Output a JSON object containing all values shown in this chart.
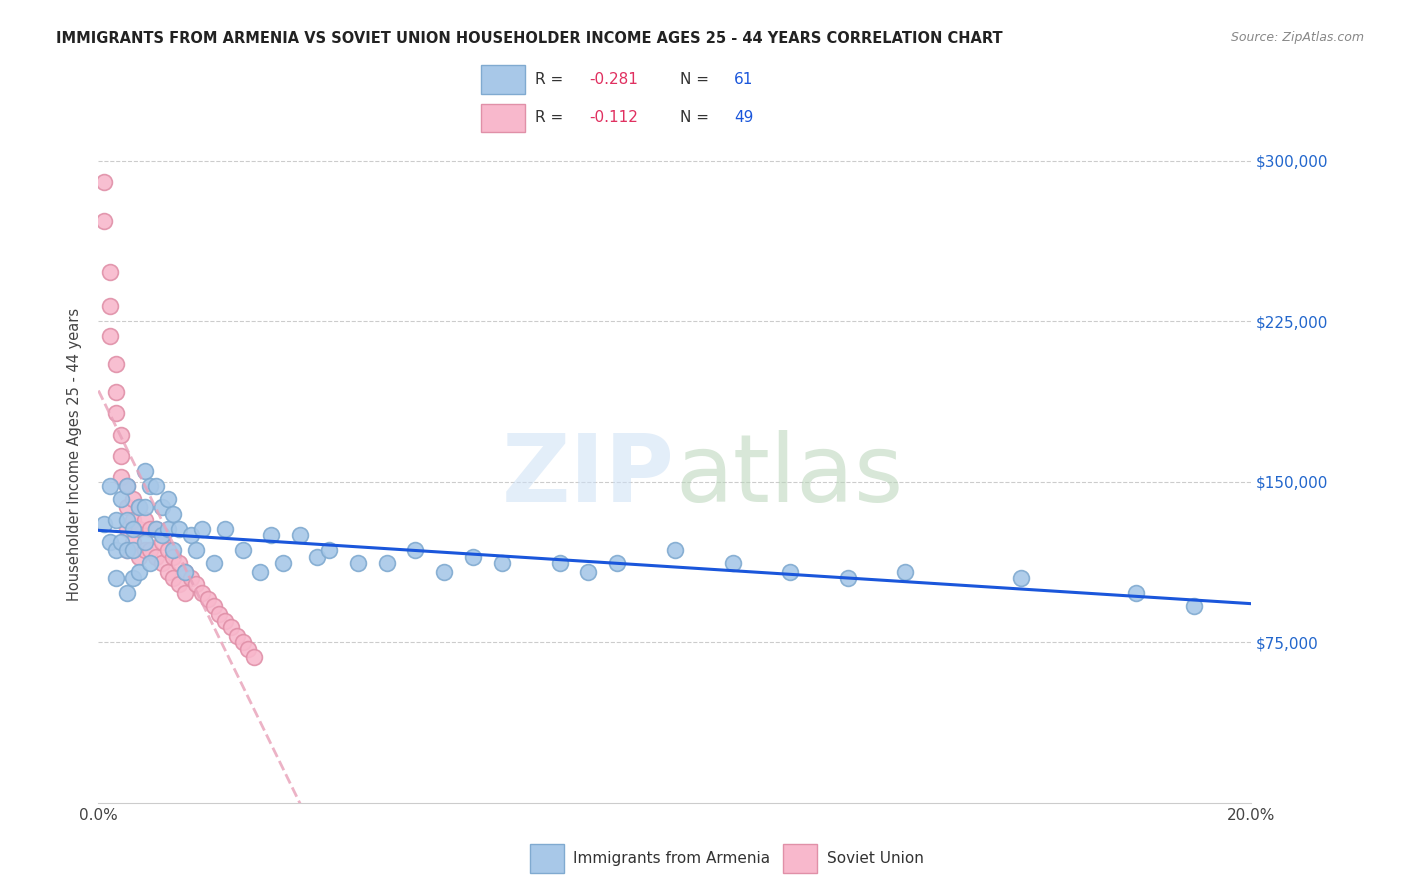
{
  "title": "IMMIGRANTS FROM ARMENIA VS SOVIET UNION HOUSEHOLDER INCOME AGES 25 - 44 YEARS CORRELATION CHART",
  "source": "Source: ZipAtlas.com",
  "ylabel": "Householder Income Ages 25 - 44 years",
  "xlim": [
    0.0,
    0.2
  ],
  "ylim": [
    0,
    325000
  ],
  "yticks": [
    75000,
    150000,
    225000,
    300000
  ],
  "ytick_labels": [
    "$75,000",
    "$150,000",
    "$225,000",
    "$300,000"
  ],
  "xticks": [
    0.0,
    0.04,
    0.08,
    0.12,
    0.16,
    0.2
  ],
  "xtick_labels": [
    "0.0%",
    "",
    "",
    "",
    "",
    "20.0%"
  ],
  "armenia_R": -0.281,
  "armenia_N": 61,
  "soviet_R": -0.112,
  "soviet_N": 49,
  "armenia_color": "#a8c8e8",
  "armenia_edge_color": "#80aad0",
  "armenia_line_color": "#1a56db",
  "soviet_color": "#f8b8cc",
  "soviet_edge_color": "#e090a8",
  "soviet_line_color": "#e8a0b8",
  "watermark_zip": "ZIP",
  "watermark_atlas": "atlas",
  "armenia_x": [
    0.001,
    0.002,
    0.002,
    0.003,
    0.003,
    0.003,
    0.004,
    0.004,
    0.005,
    0.005,
    0.005,
    0.005,
    0.006,
    0.006,
    0.006,
    0.007,
    0.007,
    0.008,
    0.008,
    0.008,
    0.009,
    0.009,
    0.01,
    0.01,
    0.011,
    0.011,
    0.012,
    0.012,
    0.013,
    0.013,
    0.014,
    0.015,
    0.016,
    0.017,
    0.018,
    0.02,
    0.022,
    0.025,
    0.028,
    0.03,
    0.032,
    0.035,
    0.038,
    0.04,
    0.045,
    0.05,
    0.055,
    0.06,
    0.065,
    0.07,
    0.08,
    0.085,
    0.09,
    0.1,
    0.11,
    0.12,
    0.13,
    0.14,
    0.16,
    0.18,
    0.19
  ],
  "armenia_y": [
    130000,
    148000,
    122000,
    132000,
    118000,
    105000,
    142000,
    122000,
    148000,
    132000,
    118000,
    98000,
    128000,
    118000,
    105000,
    138000,
    108000,
    155000,
    138000,
    122000,
    148000,
    112000,
    148000,
    128000,
    138000,
    125000,
    142000,
    128000,
    135000,
    118000,
    128000,
    108000,
    125000,
    118000,
    128000,
    112000,
    128000,
    118000,
    108000,
    125000,
    112000,
    125000,
    115000,
    118000,
    112000,
    112000,
    118000,
    108000,
    115000,
    112000,
    112000,
    108000,
    112000,
    118000,
    112000,
    108000,
    105000,
    108000,
    105000,
    98000,
    92000
  ],
  "soviet_x": [
    0.001,
    0.001,
    0.002,
    0.002,
    0.002,
    0.003,
    0.003,
    0.003,
    0.004,
    0.004,
    0.004,
    0.005,
    0.005,
    0.005,
    0.005,
    0.006,
    0.006,
    0.006,
    0.007,
    0.007,
    0.007,
    0.008,
    0.008,
    0.009,
    0.009,
    0.01,
    0.01,
    0.011,
    0.011,
    0.012,
    0.012,
    0.013,
    0.013,
    0.014,
    0.014,
    0.015,
    0.015,
    0.016,
    0.017,
    0.018,
    0.019,
    0.02,
    0.021,
    0.022,
    0.023,
    0.024,
    0.025,
    0.026,
    0.027
  ],
  "soviet_y": [
    290000,
    272000,
    248000,
    232000,
    218000,
    205000,
    192000,
    182000,
    172000,
    162000,
    152000,
    148000,
    138000,
    128000,
    118000,
    142000,
    132000,
    122000,
    138000,
    128000,
    115000,
    132000,
    118000,
    128000,
    118000,
    128000,
    115000,
    122000,
    112000,
    118000,
    108000,
    115000,
    105000,
    112000,
    102000,
    108000,
    98000,
    105000,
    102000,
    98000,
    95000,
    92000,
    88000,
    85000,
    82000,
    78000,
    75000,
    72000,
    68000
  ]
}
